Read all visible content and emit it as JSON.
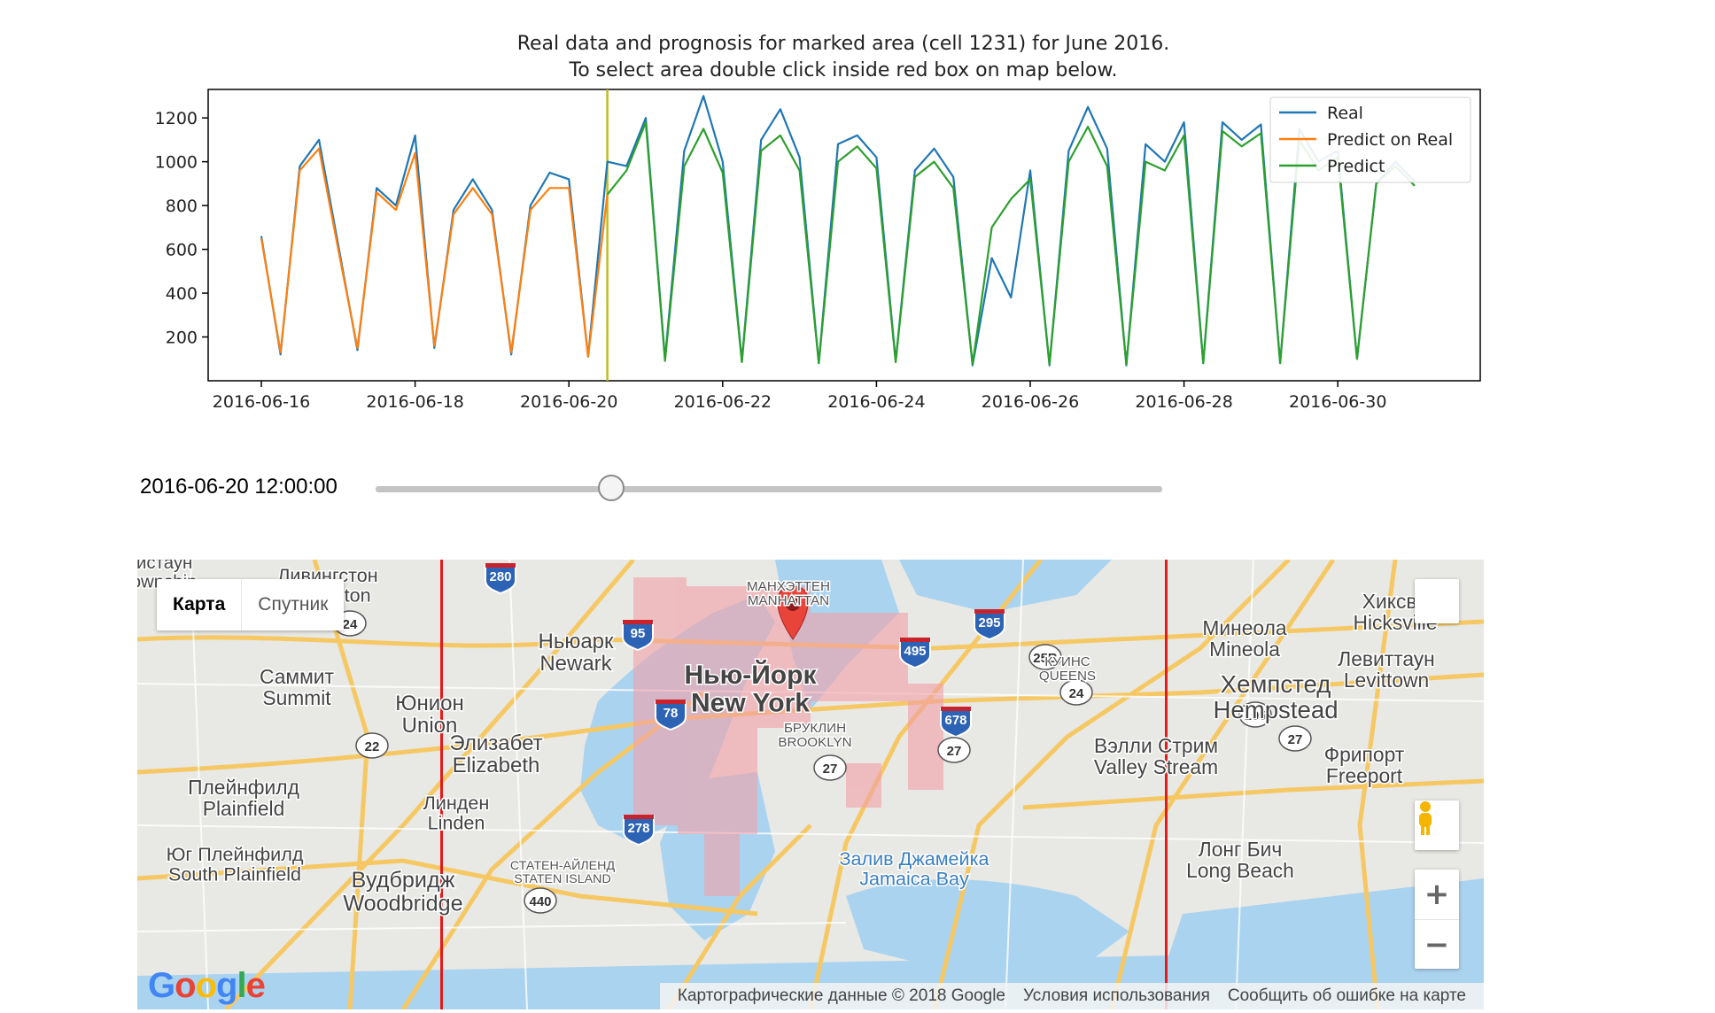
{
  "chart_data": {
    "type": "line",
    "title": "Real data and prognosis for marked area (cell 1231) for June 2016.\nTo select area double click inside red box on map below.",
    "xlabel": "",
    "ylabel": "",
    "x_range": [
      "2016-06-15",
      "2016-07-01"
    ],
    "ylim": [
      0,
      1330
    ],
    "yticks": [
      200,
      400,
      600,
      800,
      1000,
      1200
    ],
    "xticks": [
      "2016-06-16",
      "2016-06-18",
      "2016-06-20",
      "2016-06-22",
      "2016-06-24",
      "2016-06-26",
      "2016-06-28",
      "2016-06-30"
    ],
    "grid": false,
    "legend": "top-right",
    "marker_line": {
      "x": "2016-06-20 12:00",
      "color": "#bcbd22"
    },
    "series": [
      {
        "name": "Real",
        "color": "#1f77b4",
        "x": [
          "2016-06-16 00:00",
          "2016-06-16 06:00",
          "2016-06-16 12:00",
          "2016-06-16 18:00",
          "2016-06-17 00:00",
          "2016-06-17 06:00",
          "2016-06-17 12:00",
          "2016-06-17 18:00",
          "2016-06-18 00:00",
          "2016-06-18 06:00",
          "2016-06-18 12:00",
          "2016-06-18 18:00",
          "2016-06-19 00:00",
          "2016-06-19 06:00",
          "2016-06-19 12:00",
          "2016-06-19 18:00",
          "2016-06-20 00:00",
          "2016-06-20 06:00",
          "2016-06-20 12:00",
          "2016-06-20 18:00",
          "2016-06-21 00:00",
          "2016-06-21 06:00",
          "2016-06-21 12:00",
          "2016-06-21 18:00",
          "2016-06-22 00:00",
          "2016-06-22 06:00",
          "2016-06-22 12:00",
          "2016-06-22 18:00",
          "2016-06-23 00:00",
          "2016-06-23 06:00",
          "2016-06-23 12:00",
          "2016-06-23 18:00",
          "2016-06-24 00:00",
          "2016-06-24 06:00",
          "2016-06-24 12:00",
          "2016-06-24 18:00",
          "2016-06-25 00:00",
          "2016-06-25 06:00",
          "2016-06-25 12:00",
          "2016-06-25 18:00",
          "2016-06-26 00:00",
          "2016-06-26 06:00",
          "2016-06-26 12:00",
          "2016-06-26 18:00",
          "2016-06-27 00:00",
          "2016-06-27 06:00",
          "2016-06-27 12:00",
          "2016-06-27 18:00",
          "2016-06-28 00:00",
          "2016-06-28 06:00",
          "2016-06-28 12:00",
          "2016-06-28 18:00",
          "2016-06-29 00:00",
          "2016-06-29 06:00",
          "2016-06-29 12:00",
          "2016-06-29 18:00",
          "2016-06-30 00:00",
          "2016-06-30 06:00",
          "2016-06-30 12:00",
          "2016-06-30 18:00",
          "2016-07-01 00:00"
        ],
        "values": [
          660,
          120,
          980,
          1100,
          620,
          140,
          880,
          800,
          1120,
          150,
          780,
          920,
          780,
          120,
          800,
          950,
          920,
          110,
          1000,
          980,
          1200,
          100,
          1050,
          1300,
          1000,
          90,
          1100,
          1240,
          1020,
          80,
          1080,
          1120,
          1020,
          90,
          960,
          1060,
          930,
          70,
          560,
          380,
          960,
          70,
          1050,
          1250,
          1060,
          70,
          1080,
          1000,
          1180,
          80,
          1180,
          1100,
          1170,
          80,
          1150,
          1000,
          1050,
          100,
          900,
          1000,
          910
        ]
      },
      {
        "name": "Predict on Real",
        "color": "#ff7f0e",
        "x": [
          "2016-06-16 00:00",
          "2016-06-16 06:00",
          "2016-06-16 12:00",
          "2016-06-16 18:00",
          "2016-06-17 00:00",
          "2016-06-17 06:00",
          "2016-06-17 12:00",
          "2016-06-17 18:00",
          "2016-06-18 00:00",
          "2016-06-18 06:00",
          "2016-06-18 12:00",
          "2016-06-18 18:00",
          "2016-06-19 00:00",
          "2016-06-19 06:00",
          "2016-06-19 12:00",
          "2016-06-19 18:00",
          "2016-06-20 00:00",
          "2016-06-20 06:00",
          "2016-06-20 12:00"
        ],
        "values": [
          650,
          130,
          960,
          1060,
          600,
          150,
          860,
          780,
          1040,
          160,
          760,
          880,
          760,
          130,
          780,
          880,
          880,
          110,
          850
        ]
      },
      {
        "name": "Predict",
        "color": "#2ca02c",
        "x": [
          "2016-06-20 12:00",
          "2016-06-20 18:00",
          "2016-06-21 00:00",
          "2016-06-21 06:00",
          "2016-06-21 12:00",
          "2016-06-21 18:00",
          "2016-06-22 00:00",
          "2016-06-22 06:00",
          "2016-06-22 12:00",
          "2016-06-22 18:00",
          "2016-06-23 00:00",
          "2016-06-23 06:00",
          "2016-06-23 12:00",
          "2016-06-23 18:00",
          "2016-06-24 00:00",
          "2016-06-24 06:00",
          "2016-06-24 12:00",
          "2016-06-24 18:00",
          "2016-06-25 00:00",
          "2016-06-25 06:00",
          "2016-06-25 12:00",
          "2016-06-25 18:00",
          "2016-06-26 00:00",
          "2016-06-26 06:00",
          "2016-06-26 12:00",
          "2016-06-26 18:00",
          "2016-06-27 00:00",
          "2016-06-27 06:00",
          "2016-06-27 12:00",
          "2016-06-27 18:00",
          "2016-06-28 00:00",
          "2016-06-28 06:00",
          "2016-06-28 12:00",
          "2016-06-28 18:00",
          "2016-06-29 00:00",
          "2016-06-29 06:00",
          "2016-06-29 12:00",
          "2016-06-29 18:00",
          "2016-06-30 00:00",
          "2016-06-30 06:00",
          "2016-06-30 12:00",
          "2016-06-30 18:00",
          "2016-07-01 00:00"
        ],
        "values": [
          850,
          960,
          1180,
          90,
          980,
          1150,
          950,
          85,
          1050,
          1120,
          960,
          80,
          1000,
          1070,
          970,
          85,
          930,
          1000,
          880,
          75,
          700,
          830,
          920,
          75,
          1000,
          1160,
          980,
          75,
          1000,
          960,
          1120,
          80,
          1140,
          1070,
          1130,
          80,
          1100,
          960,
          1020,
          100,
          900,
          980,
          890
        ]
      }
    ]
  },
  "slider": {
    "value_label": "2016-06-20 12:00:00",
    "position": 0.3
  },
  "map": {
    "type_control": {
      "map_label": "Карта",
      "satellite_label": "Спутник"
    },
    "labels": [
      {
        "id": "newark",
        "ru": "Ньюарк",
        "en": "Newark"
      },
      {
        "id": "newyork",
        "ru": "Нью-Йорк",
        "en": "New York"
      },
      {
        "id": "manhattan",
        "ru": "МАНХЭТТЕН",
        "en": "MANHATTAN"
      },
      {
        "id": "brooklyn",
        "ru": "БРУКЛИН",
        "en": "BROOKLYN"
      },
      {
        "id": "queens",
        "ru": "КУИНС",
        "en": "QUEENS"
      },
      {
        "id": "summit",
        "ru": "Саммит",
        "en": "Summit"
      },
      {
        "id": "union",
        "ru": "Юнион",
        "en": "Union"
      },
      {
        "id": "elizabeth",
        "ru": "Элизабет",
        "en": "Elizabeth"
      },
      {
        "id": "plainfield",
        "ru": "Плейнфилд",
        "en": "Plainfield"
      },
      {
        "id": "linden",
        "ru": "Линден",
        "en": "Linden"
      },
      {
        "id": "southplainfield",
        "ru": "Юг Плейнфилд",
        "en": "South Plainfield"
      },
      {
        "id": "woodbridge",
        "ru": "Вудбридж",
        "en": "Woodbridge"
      },
      {
        "id": "statenisland",
        "ru": "СТАТЕН-АЙЛЕНД",
        "en": "STATEN ISLAND"
      },
      {
        "id": "jamaicabay",
        "ru": "Залив Джамейка",
        "en": "Jamaica Bay"
      },
      {
        "id": "mineola",
        "ru": "Минеола",
        "en": "Mineola"
      },
      {
        "id": "hicksville",
        "ru": "Хиксви",
        "en": "Hicksville"
      },
      {
        "id": "levittown",
        "ru": "Левиттаун",
        "en": "Levittown"
      },
      {
        "id": "hempstead",
        "ru": "Хемпстед",
        "en": "Hempstead"
      },
      {
        "id": "valleystream",
        "ru": "Вэлли Стрим",
        "en": "Valley Stream"
      },
      {
        "id": "freeport",
        "ru": "Фрипорт",
        "en": "Freeport"
      },
      {
        "id": "longbeach",
        "ru": "Лонг Бич",
        "en": "Long Beach"
      },
      {
        "id": "livingston",
        "ru": "Ливингстон",
        "en": "Livingston"
      },
      {
        "id": "morristown",
        "ru": "ристаун",
        "en": "Township"
      }
    ],
    "shields": {
      "i280": "280",
      "i95": "95",
      "i78": "78",
      "i278": "278",
      "i495": "495",
      "i295": "295",
      "i678": "678",
      "r24": "24",
      "r22": "22",
      "r27a": "27",
      "r27b": "27",
      "r27c": "27",
      "r25b": "25B",
      "r24b": "24",
      "r105": "105",
      "r440": "440"
    },
    "google_logo": "Google",
    "attribution": {
      "data": "Картографические данные © 2018 Google",
      "terms": "Условия использования",
      "report": "Сообщить об ошибке на карте"
    },
    "zoom_in": "+",
    "zoom_out": "−"
  }
}
